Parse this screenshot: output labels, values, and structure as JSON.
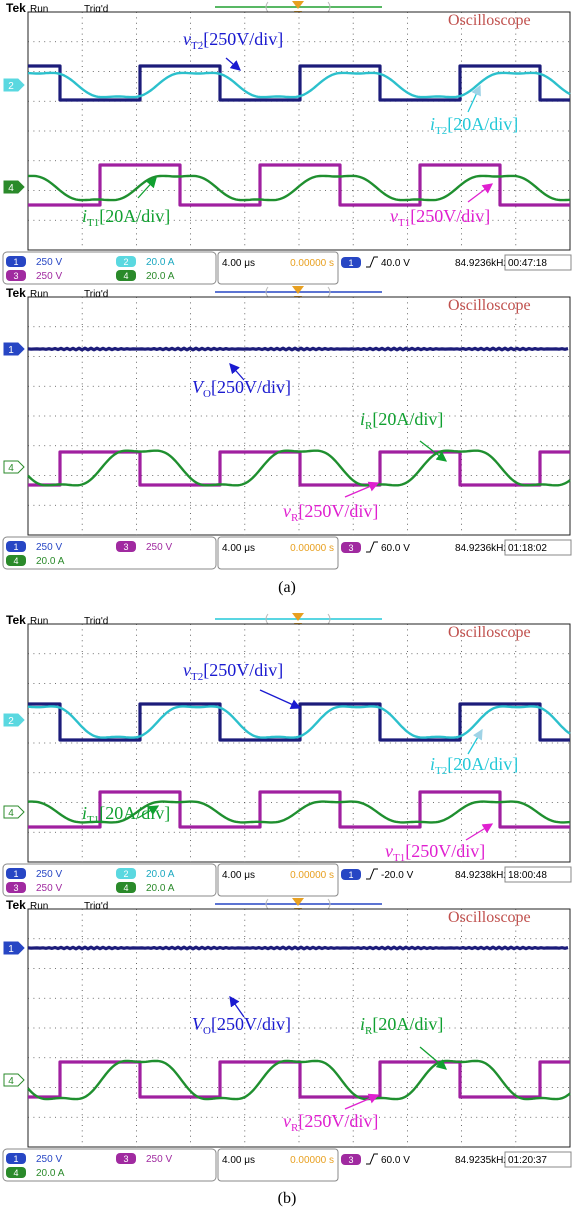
{
  "panels": [
    {
      "header": {
        "brand": "Tek",
        "state": "Run",
        "trigger": "Trig'd",
        "title": "Oscilloscope"
      },
      "markers": [
        "2",
        "4"
      ],
      "annotations": [
        {
          "symbol": "v",
          "sub": "T2",
          "scale": "[250V/div]"
        },
        {
          "symbol": "i",
          "sub": "T2",
          "scale": "[20A/div]"
        },
        {
          "symbol": "i",
          "sub": "T1",
          "scale": "[20A/div]"
        },
        {
          "symbol": "v",
          "sub": "T1",
          "scale": "[250V/div]"
        }
      ],
      "channels": [
        {
          "id": "1",
          "scale": "250 V"
        },
        {
          "id": "2",
          "scale": "20.0 A"
        },
        {
          "id": "3",
          "scale": "250 V"
        },
        {
          "id": "4",
          "scale": "20.0 A"
        }
      ],
      "timebase": "4.00 μs",
      "delay": "0.00000 s",
      "trigger_source": "1",
      "trigger_level": "40.0 V",
      "frequency": "84.9236kHz",
      "clock": "00:47:18"
    },
    {
      "header": {
        "brand": "Tek",
        "state": "Run",
        "trigger": "Trig'd",
        "title": "Oscilloscope"
      },
      "markers": [
        "1",
        "4"
      ],
      "annotations": [
        {
          "symbol": "V",
          "sub": "O",
          "scale": "[250V/div]"
        },
        {
          "symbol": "i",
          "sub": "R",
          "scale": "[20A/div]"
        },
        {
          "symbol": "v",
          "sub": "R",
          "scale": "[250V/div]"
        }
      ],
      "channels": [
        {
          "id": "1",
          "scale": "250 V"
        },
        {
          "id": "3",
          "scale": "250 V"
        },
        {
          "id": "4",
          "scale": "20.0 A"
        }
      ],
      "timebase": "4.00 μs",
      "delay": "0.00000 s",
      "trigger_source": "3",
      "trigger_level": "60.0 V",
      "frequency": "84.9236kHz",
      "clock": "01:18:02"
    },
    {
      "header": {
        "brand": "Tek",
        "state": "Run",
        "trigger": "Trig'd",
        "title": "Oscilloscope"
      },
      "markers": [
        "2",
        "4"
      ],
      "annotations": [
        {
          "symbol": "v",
          "sub": "T2",
          "scale": "[250V/div]"
        },
        {
          "symbol": "i",
          "sub": "T2",
          "scale": "[20A/div]"
        },
        {
          "symbol": "i",
          "sub": "T1",
          "scale": "[20A/div]"
        },
        {
          "symbol": "v",
          "sub": "T1",
          "scale": "[250V/div]"
        }
      ],
      "channels": [
        {
          "id": "1",
          "scale": "250 V"
        },
        {
          "id": "2",
          "scale": "20.0 A"
        },
        {
          "id": "3",
          "scale": "250 V"
        },
        {
          "id": "4",
          "scale": "20.0 A"
        }
      ],
      "timebase": "4.00 μs",
      "delay": "0.00000 s",
      "trigger_source": "1",
      "trigger_level": "-20.0 V",
      "frequency": "84.9238kHz",
      "clock": "18:00:48"
    },
    {
      "header": {
        "brand": "Tek",
        "state": "Run",
        "trigger": "Trig'd",
        "title": "Oscilloscope"
      },
      "markers": [
        "1",
        "4"
      ],
      "annotations": [
        {
          "symbol": "V",
          "sub": "O",
          "scale": "[250V/div]"
        },
        {
          "symbol": "i",
          "sub": "R",
          "scale": "[20A/div]"
        },
        {
          "symbol": "v",
          "sub": "R",
          "scale": "[250V/div]"
        }
      ],
      "channels": [
        {
          "id": "1",
          "scale": "250 V"
        },
        {
          "id": "3",
          "scale": "250 V"
        },
        {
          "id": "4",
          "scale": "20.0 A"
        }
      ],
      "timebase": "4.00 μs",
      "delay": "0.00000 s",
      "trigger_source": "3",
      "trigger_level": "60.0 V",
      "frequency": "84.9235kHz",
      "clock": "01:20:37"
    }
  ],
  "captions": [
    "(a)",
    "(b)"
  ]
}
